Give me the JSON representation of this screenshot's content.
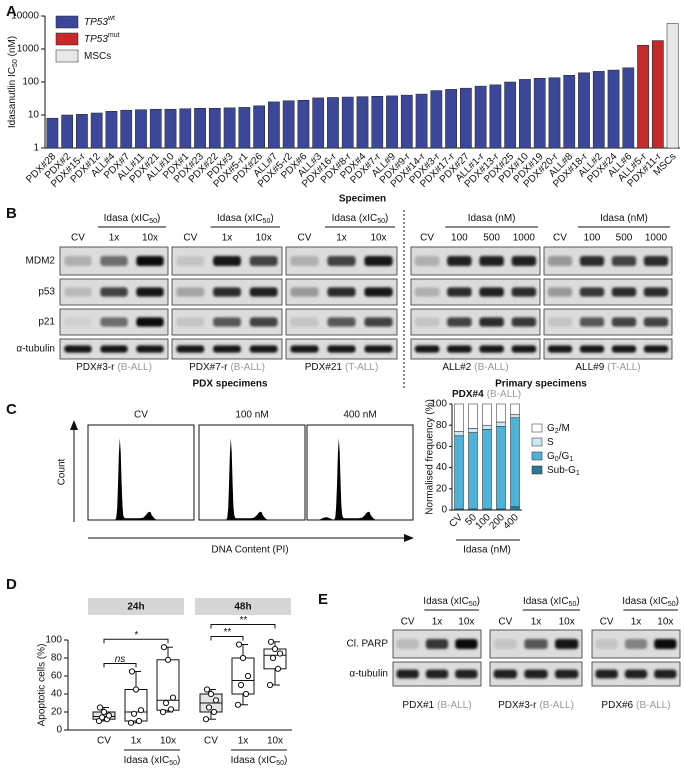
{
  "panel_labels": [
    "A",
    "B",
    "C",
    "D",
    "E"
  ],
  "chart_data": [
    {
      "type": "bar",
      "y_label": [
        "Idasanutlin IC",
        "50",
        " (nM)"
      ],
      "x_label": "Specimen",
      "categories": [
        "PDX#28",
        "PDX#2",
        "PDX#15-r",
        "PDX#12",
        "ALL#4",
        "PDX#7",
        "ALL#11",
        "PDX#21",
        "ALL#10",
        "PDX#1",
        "PDX#23",
        "PDX#22",
        "PDX#3",
        "PDX#5-r1",
        "PDX#26",
        "ALL#7",
        "PDX#5-r2",
        "PDX#6",
        "ALL#3",
        "PDX#16-r",
        "PDX#8-r",
        "PDX#4",
        "PDX#7-r",
        "ALL#9",
        "PDX#9-r",
        "PDX#14-r",
        "PDX#3-r",
        "PDX#17-r",
        "PDX#27",
        "ALL#1-r",
        "PDX#13-r",
        "PDX#25",
        "PDX#10",
        "PDX#19",
        "PDX#20-r",
        "ALL#8",
        "PDX#18-r",
        "ALL#2",
        "PDX#24",
        "ALL#6",
        "ALL#5-r",
        "PDX#11-r",
        "MSCs"
      ],
      "series": [
        {
          "name": [
            "TP53",
            "wt"
          ],
          "color": "#3c479a",
          "values": [
            8,
            10,
            10.5,
            11.5,
            13,
            14,
            14.5,
            15,
            15,
            15.5,
            16,
            16,
            16.5,
            17,
            19,
            25,
            27,
            28,
            33,
            34,
            35,
            36,
            37,
            38,
            40,
            43,
            55,
            60,
            65,
            75,
            82,
            100,
            120,
            130,
            135,
            160,
            190,
            210,
            230,
            270,
            null,
            null,
            null
          ]
        },
        {
          "name": [
            "TP53",
            "mut"
          ],
          "color": "#c42a2a",
          "values": [
            null,
            null,
            null,
            null,
            null,
            null,
            null,
            null,
            null,
            null,
            null,
            null,
            null,
            null,
            null,
            null,
            null,
            null,
            null,
            null,
            null,
            null,
            null,
            null,
            null,
            null,
            null,
            null,
            null,
            null,
            null,
            null,
            null,
            null,
            null,
            null,
            null,
            null,
            null,
            null,
            1300,
            1800,
            null
          ]
        },
        {
          "name": [
            "MSCs"
          ],
          "color": "#e8e8e8",
          "values": [
            null,
            null,
            null,
            null,
            null,
            null,
            null,
            null,
            null,
            null,
            null,
            null,
            null,
            null,
            null,
            null,
            null,
            null,
            null,
            null,
            null,
            null,
            null,
            null,
            null,
            null,
            null,
            null,
            null,
            null,
            null,
            null,
            null,
            null,
            null,
            null,
            null,
            null,
            null,
            null,
            null,
            null,
            6000
          ]
        }
      ],
      "ylim": [
        1,
        10000
      ],
      "yticks": [
        1,
        10,
        100,
        1000,
        10000
      ],
      "log_scale": true,
      "legend": "upper left"
    },
    {
      "type": "stacked_bar",
      "title": "PDX#4",
      "subtitle": "(B-ALL)",
      "y_label": "Normalised frequency (%)",
      "x_label": "Idasa (nM)",
      "categories": [
        "CV",
        "50",
        "100",
        "200",
        "400"
      ],
      "series": [
        {
          "name": [
            "Sub-G",
            "1"
          ],
          "color": "#2c7a98",
          "values": [
            1,
            1,
            1,
            1,
            3
          ]
        },
        {
          "name": [
            "G",
            "0",
            "/G",
            "1"
          ],
          "color": "#4fb3d9",
          "values": [
            69,
            72,
            75,
            78,
            84
          ]
        },
        {
          "name": [
            "S"
          ],
          "color": "#cde8f4",
          "values": [
            4,
            4,
            4,
            4,
            3
          ]
        },
        {
          "name": [
            "G",
            "2",
            "/M"
          ],
          "color": "#ffffff",
          "values": [
            26,
            23,
            20,
            17,
            10
          ]
        }
      ],
      "ylim": [
        0,
        100
      ],
      "yticks": [
        0,
        20,
        40,
        60,
        80,
        100
      ],
      "legend": "right"
    },
    {
      "type": "box",
      "y_label": "Apoptotic cells (%)",
      "colors": [
        "#e4e4e4",
        "#ffffff",
        "#ffffff"
      ],
      "groups": [
        {
          "name": "24h",
          "x_label": [
            "Idasa (xIC",
            "50",
            ")"
          ],
          "categories": [
            "CV",
            "1x",
            "10x"
          ],
          "boxes": [
            {
              "min": 10,
              "q1": 12,
              "median": 15,
              "q3": 20,
              "max": 25,
              "points": [
                10,
                12,
                14,
                16,
                20,
                25
              ]
            },
            {
              "min": 8,
              "q1": 10,
              "median": 20,
              "q3": 45,
              "max": 65,
              "points": [
                8,
                10,
                18,
                22,
                45,
                65
              ]
            },
            {
              "min": 20,
              "q1": 22,
              "median": 33,
              "q3": 78,
              "max": 92,
              "points": [
                20,
                23,
                30,
                36,
                78,
                92
              ]
            }
          ],
          "comparisons": [
            {
              "between": [
                0,
                1
              ],
              "label": "ns"
            },
            {
              "between": [
                0,
                2
              ],
              "label": "*"
            }
          ]
        },
        {
          "name": "48h",
          "x_label": [
            "Idasa (xIC",
            "50",
            ")"
          ],
          "categories": [
            "CV",
            "1x",
            "10x"
          ],
          "boxes": [
            {
              "min": 12,
              "q1": 20,
              "median": 30,
              "q3": 40,
              "max": 45,
              "points": [
                12,
                20,
                25,
                33,
                40,
                45
              ]
            },
            {
              "min": 28,
              "q1": 40,
              "median": 55,
              "q3": 80,
              "max": 95,
              "points": [
                28,
                40,
                50,
                60,
                80,
                95
              ]
            },
            {
              "min": 50,
              "q1": 68,
              "median": 83,
              "q3": 90,
              "max": 98,
              "points": [
                50,
                68,
                80,
                85,
                90,
                98
              ]
            }
          ],
          "comparisons": [
            {
              "between": [
                0,
                1
              ],
              "label": "**"
            },
            {
              "between": [
                0,
                2
              ],
              "label": "**"
            }
          ]
        }
      ],
      "ylim": [
        0,
        100
      ],
      "yticks": [
        0,
        20,
        40,
        60,
        80,
        100
      ]
    }
  ],
  "blots_b": {
    "rows": [
      "MDM2",
      "p53",
      "p21",
      "α-tubulin"
    ],
    "groups": [
      {
        "header": [
          "Idasa (xIC",
          "50",
          ")"
        ],
        "lanes": [
          "CV",
          "1x",
          "10x"
        ],
        "label": "PDX#3-r",
        "sublabel": "(B-ALL)"
      },
      {
        "header": [
          "Idasa (xIC",
          "50",
          ")"
        ],
        "lanes": [
          "CV",
          "1x",
          "10x"
        ],
        "label": "PDX#7-r",
        "sublabel": "(B-ALL)"
      },
      {
        "header": [
          "Idasa (xIC",
          "50",
          ")"
        ],
        "lanes": [
          "CV",
          "1x",
          "10x"
        ],
        "label": "PDX#21",
        "sublabel": "(T-ALL)"
      },
      {
        "header": [
          "Idasa (nM)"
        ],
        "lanes": [
          "CV",
          "100",
          "500",
          "1000"
        ],
        "label": "ALL#2",
        "sublabel": "(B-ALL)"
      },
      {
        "header": [
          "Idasa (nM)"
        ],
        "lanes": [
          "CV",
          "100",
          "500",
          "1000"
        ],
        "label": "ALL#9",
        "sublabel": "(T-ALL)"
      }
    ],
    "sections": [
      "PDX specimens",
      "Primary specimens"
    ]
  },
  "histograms_c": {
    "titles": [
      "CV",
      "100 nM",
      "400 nM"
    ],
    "y_label": "Count",
    "x_label": "DNA Content (PI)"
  },
  "blots_e": {
    "rows": [
      "Cl. PARP",
      "α-tubulin"
    ],
    "groups": [
      {
        "header": [
          "Idasa (xIC",
          "50",
          ")"
        ],
        "lanes": [
          "CV",
          "1x",
          "10x"
        ],
        "label": "PDX#1",
        "sublabel": "(B-ALL)"
      },
      {
        "header": [
          "Idasa (xIC",
          "50",
          ")"
        ],
        "lanes": [
          "CV",
          "1x",
          "10x"
        ],
        "label": "PDX#3-r",
        "sublabel": "(B-ALL)"
      },
      {
        "header": [
          "Idasa (xIC",
          "50",
          ")"
        ],
        "lanes": [
          "CV",
          "1x",
          "10x"
        ],
        "label": "PDX#6",
        "sublabel": "(B-ALL)"
      }
    ]
  }
}
